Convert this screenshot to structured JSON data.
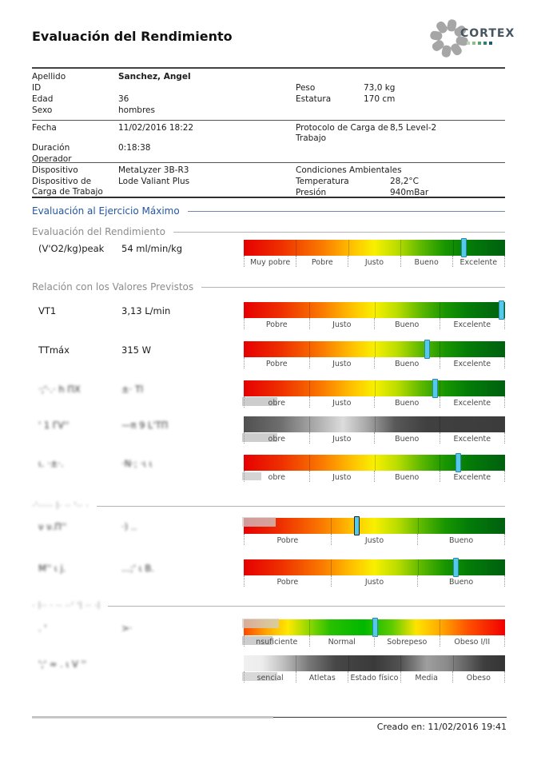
{
  "header": {
    "title": "Evaluación del Rendimiento",
    "brand": "CORTEX"
  },
  "logo_dot_colors": [
    "#bcd6b4",
    "#8fbe8e",
    "#57a268",
    "#2b7f74",
    "#1c5b78"
  ],
  "info": {
    "block1_left": [
      {
        "label": "Apellido",
        "value": "Sanchez, Angel",
        "bold": true
      },
      {
        "label": "ID",
        "value": ""
      },
      {
        "label": "Edad",
        "value": "36"
      },
      {
        "label": "Sexo",
        "value": "hombres"
      }
    ],
    "block1_right": [
      {
        "label": "Peso",
        "value": "73,0 kg"
      },
      {
        "label": "Estatura",
        "value": "170 cm"
      }
    ],
    "block2_left": [
      {
        "label": "Fecha",
        "value": "11/02/2016 18:22"
      },
      {
        "label": "Duración",
        "value": "0:18:38"
      },
      {
        "label": "Operador",
        "value": ""
      }
    ],
    "block2_right": [
      {
        "label": "Protocolo de Carga de Trabajo",
        "value": "8,5 Level-2"
      }
    ],
    "block3_left": [
      {
        "label": "Dispositivo",
        "value": "MetaLyzer 3B-R3"
      },
      {
        "label": "Dispositivo de Carga de Trabajo",
        "value": "Lode Valiant Plus"
      }
    ],
    "block3_right_title": "Condiciones Ambientales",
    "block3_right": [
      {
        "label": "Temperatura",
        "value": "28,2°C"
      },
      {
        "label": "Presión",
        "value": "940mBar"
      }
    ]
  },
  "section_headers": [
    {
      "key": "max_exercise",
      "text": "Evaluación al Ejercicio Máximo",
      "style": "blue",
      "blurred": false
    },
    {
      "key": "performance",
      "text": "Evaluación del Rendimiento",
      "style": "gray",
      "blurred": false
    },
    {
      "key": "predicted",
      "text": "Relación con los Valores Previstos",
      "style": "gray",
      "blurred": false
    },
    {
      "key": "blurred_header_1",
      "text": "·'····· l· ·· '·· ·",
      "style": "gray",
      "blurred": true
    },
    {
      "key": "blurred_header_2",
      "text": "· l·· · ·· ··' 'l ·· ·l",
      "style": "gray",
      "blurred": true
    }
  ],
  "scales": {
    "perf": [
      [
        "#e60000",
        0
      ],
      [
        "#ee2e00",
        14
      ],
      [
        "#fa7a00",
        30
      ],
      [
        "#ffc400",
        42
      ],
      [
        "#f8f000",
        50
      ],
      [
        "#b8dc00",
        59
      ],
      [
        "#5cb800",
        68
      ],
      [
        "#189600",
        77
      ],
      [
        "#047c08",
        86
      ],
      [
        "#006010",
        100
      ]
    ],
    "bmi": [
      [
        "#ff4800",
        0
      ],
      [
        "#ffa800",
        9
      ],
      [
        "#ffe800",
        17
      ],
      [
        "#90d800",
        25
      ],
      [
        "#28c000",
        33
      ],
      [
        "#00b800",
        46
      ],
      [
        "#60cc00",
        57
      ],
      [
        "#ffe400",
        66
      ],
      [
        "#ffa400",
        76
      ],
      [
        "#ff5000",
        86
      ],
      [
        "#f00000",
        100
      ]
    ],
    "gray_fitness": [
      [
        "#505050",
        0
      ],
      [
        "#6e6e6e",
        14
      ],
      [
        "#c0c0c0",
        32
      ],
      [
        "#dcdcdc",
        38
      ],
      [
        "#a8a8a8",
        47
      ],
      [
        "#585858",
        58
      ],
      [
        "#404040",
        70
      ],
      [
        "#3c3c3c",
        100
      ]
    ],
    "gray_bodyfat": [
      [
        "#f0f0f0",
        0
      ],
      [
        "#ededed",
        7
      ],
      [
        "#c0c0c0",
        15
      ],
      [
        "#787878",
        25
      ],
      [
        "#474747",
        35
      ],
      [
        "#3a3a3a",
        50
      ],
      [
        "#525252",
        60
      ],
      [
        "#9e9e9e",
        70
      ],
      [
        "#8a8a8a",
        78
      ],
      [
        "#3e3e3e",
        92
      ],
      [
        "#343434",
        100
      ]
    ]
  },
  "marker_color": "#55c9e9",
  "rows": [
    {
      "id": "vo2kg-peak",
      "label": "(V'O2/kg)peak",
      "value": "54 ml/min/kg",
      "blurred": false,
      "zones": [
        "Muy pobre",
        "Pobre",
        "Justo",
        "Bueno",
        "Excelente"
      ],
      "scale": "perf",
      "marker": 0.84,
      "outline": false
    },
    {
      "id": "vt1",
      "label": "VT1",
      "value": "3,13 L/min",
      "blurred": false,
      "zones": [
        "Pobre",
        "Justo",
        "Bueno",
        "Excelente"
      ],
      "scale": "perf",
      "marker": 0.985,
      "outline": false
    },
    {
      "id": "ttmax",
      "label": "TTmáx",
      "value": "315 W",
      "blurred": false,
      "zones": [
        "Pobre",
        "Justo",
        "Bueno",
        "Excelente"
      ],
      "scale": "perf",
      "marker": 0.7,
      "outline": false
    },
    {
      "id": "blurred-1",
      "label": "·;'·.· h ΠX",
      "value": "±· Tl",
      "blurred": true,
      "zones": [
        "obre",
        "Justo",
        "Bueno",
        "Excelente"
      ],
      "scale": "perf",
      "marker": 0.73,
      "outline": false
    },
    {
      "id": "blurred-2",
      "label": "' 1 ΓV''",
      "value": "—π 9 L'TΠ",
      "blurred": true,
      "zones": [
        "obre",
        "Justo",
        "Bueno",
        "Excelente"
      ],
      "scale": "gray_fitness",
      "marker": null,
      "outline": false
    },
    {
      "id": "blurred-3",
      "label": "ι. ·±·.",
      "value": "·Ν·; ·ι ι",
      "blurred": true,
      "zones": [
        "obre",
        "Justo",
        "Bueno",
        "Excelente"
      ],
      "scale": "perf",
      "marker": 0.82,
      "outline": false
    },
    {
      "id": "blurred-4",
      "label": "ν ν.Π''",
      "value": "·) ..",
      "blurred": true,
      "zones": [
        "Pobre",
        "Justo",
        "Bueno"
      ],
      "scale": "perf",
      "marker": 0.43,
      "outline": true
    },
    {
      "id": "blurred-5",
      "label": "Μ'' ι j.",
      "value": "...;' ι Β.",
      "blurred": true,
      "zones": [
        "Pobre",
        "Justo",
        "Bueno"
      ],
      "scale": "perf",
      "marker": 0.81,
      "outline": false
    },
    {
      "id": "blurred-6",
      "label": ". '",
      "value": ">·",
      "blurred": true,
      "zones": [
        "nsuficiente",
        "Normal",
        "Sobrepeso",
        "Obeso I/II"
      ],
      "scale": "bmi",
      "marker": 0.5,
      "outline": false
    },
    {
      "id": "blurred-7",
      "label": "';' ≈ . ι V ''",
      "value": "",
      "blurred": true,
      "zones": [
        "sencial",
        "Atletas",
        "Estado físico",
        "Media",
        "Obeso"
      ],
      "scale": "gray_bodyfat",
      "marker": null,
      "outline": false
    }
  ],
  "footer": {
    "created": "Creado en: 11/02/2016 19:41"
  }
}
